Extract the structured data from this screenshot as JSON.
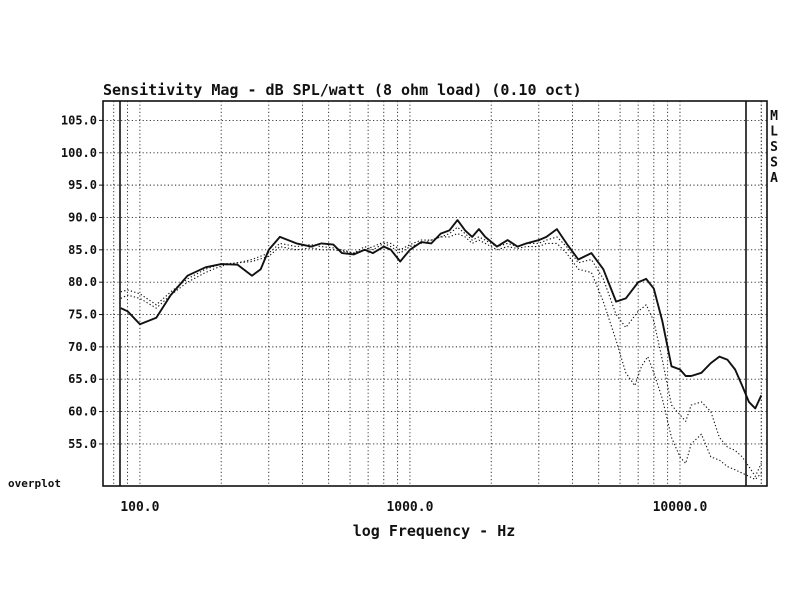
{
  "chart_data": {
    "type": "line",
    "title": "Sensitivity Mag - dB SPL/watt (8 ohm load) (0.10 oct)",
    "xlabel": "log Frequency - Hz",
    "ylabel": "",
    "x_scale": "log",
    "xlim": [
      73,
      21000
    ],
    "ylim": [
      48.5,
      108
    ],
    "grid": true,
    "x_tick_labels": [
      "100.0",
      "1000.0",
      "10000.0"
    ],
    "x_tick_values": [
      100,
      1000,
      10000
    ],
    "y_tick_labels": [
      "105.0",
      "100.0",
      "95.0",
      "90.0",
      "85.0",
      "80.0",
      "75.0",
      "70.0",
      "65.0",
      "60.0",
      "55.0"
    ],
    "y_tick_values": [
      105,
      100,
      95,
      90,
      85,
      80,
      75,
      70,
      65,
      60,
      55
    ],
    "bottom_label": "overplot",
    "side_label": [
      "M",
      "L",
      "S",
      "S",
      "A"
    ],
    "series": [
      {
        "style": "solid",
        "points": [
          [
            85,
            76
          ],
          [
            90,
            75.5
          ],
          [
            100,
            73.5
          ],
          [
            115,
            74.5
          ],
          [
            130,
            78
          ],
          [
            150,
            81
          ],
          [
            175,
            82.3
          ],
          [
            200,
            82.8
          ],
          [
            230,
            82.7
          ],
          [
            260,
            81
          ],
          [
            280,
            82
          ],
          [
            300,
            85
          ],
          [
            330,
            87
          ],
          [
            380,
            86
          ],
          [
            430,
            85.5
          ],
          [
            470,
            86
          ],
          [
            520,
            85.8
          ],
          [
            560,
            84.5
          ],
          [
            620,
            84.3
          ],
          [
            680,
            85
          ],
          [
            730,
            84.5
          ],
          [
            800,
            85.5
          ],
          [
            850,
            85
          ],
          [
            920,
            83.2
          ],
          [
            1000,
            85
          ],
          [
            1100,
            86.2
          ],
          [
            1200,
            86
          ],
          [
            1300,
            87.5
          ],
          [
            1400,
            88
          ],
          [
            1500,
            89.6
          ],
          [
            1600,
            88
          ],
          [
            1700,
            87
          ],
          [
            1800,
            88.2
          ],
          [
            1900,
            87
          ],
          [
            2100,
            85.5
          ],
          [
            2300,
            86.5
          ],
          [
            2500,
            85.5
          ],
          [
            2700,
            86
          ],
          [
            3000,
            86.5
          ],
          [
            3200,
            87
          ],
          [
            3500,
            88.2
          ],
          [
            3800,
            86
          ],
          [
            4200,
            83.5
          ],
          [
            4700,
            84.5
          ],
          [
            5200,
            82
          ],
          [
            5800,
            77
          ],
          [
            6300,
            77.5
          ],
          [
            7000,
            80
          ],
          [
            7500,
            80.5
          ],
          [
            8000,
            79
          ],
          [
            8600,
            74
          ],
          [
            9300,
            67
          ],
          [
            10000,
            66.5
          ],
          [
            10500,
            65.5
          ],
          [
            11000,
            65.5
          ],
          [
            12000,
            66
          ],
          [
            13000,
            67.5
          ],
          [
            14000,
            68.5
          ],
          [
            15000,
            68
          ],
          [
            16000,
            66.5
          ],
          [
            17000,
            64
          ],
          [
            18000,
            61.5
          ],
          [
            19000,
            60.5
          ],
          [
            20000,
            62.5
          ]
        ]
      },
      {
        "style": "dotted",
        "points": [
          [
            85,
            78.5
          ],
          [
            90,
            78.8
          ],
          [
            100,
            78.2
          ],
          [
            115,
            76.5
          ],
          [
            130,
            78.5
          ],
          [
            150,
            80.5
          ],
          [
            175,
            82
          ],
          [
            200,
            82.8
          ],
          [
            230,
            83
          ],
          [
            260,
            83.5
          ],
          [
            300,
            84.5
          ],
          [
            330,
            86
          ],
          [
            380,
            85.5
          ],
          [
            430,
            85.8
          ],
          [
            470,
            85.5
          ],
          [
            520,
            85.3
          ],
          [
            560,
            85
          ],
          [
            620,
            84.5
          ],
          [
            680,
            85.5
          ],
          [
            730,
            85
          ],
          [
            800,
            86
          ],
          [
            850,
            85.5
          ],
          [
            920,
            84.5
          ],
          [
            1000,
            85.5
          ],
          [
            1100,
            86
          ],
          [
            1200,
            86.5
          ],
          [
            1300,
            87
          ],
          [
            1400,
            87.5
          ],
          [
            1500,
            88.5
          ],
          [
            1600,
            87.5
          ],
          [
            1700,
            86.5
          ],
          [
            1800,
            87
          ],
          [
            1900,
            86.5
          ],
          [
            2100,
            85.5
          ],
          [
            2300,
            86
          ],
          [
            2500,
            85.5
          ],
          [
            2700,
            86
          ],
          [
            3000,
            86
          ],
          [
            3200,
            86.5
          ],
          [
            3500,
            87
          ],
          [
            3800,
            85.5
          ],
          [
            4200,
            83
          ],
          [
            4700,
            83.5
          ],
          [
            5200,
            80.5
          ],
          [
            5800,
            75
          ],
          [
            6300,
            73
          ],
          [
            7000,
            75.5
          ],
          [
            7500,
            76.5
          ],
          [
            8000,
            74
          ],
          [
            8600,
            68
          ],
          [
            9300,
            61
          ],
          [
            10000,
            59.5
          ],
          [
            10500,
            58.5
          ],
          [
            11000,
            61
          ],
          [
            12000,
            61.5
          ],
          [
            13000,
            60
          ],
          [
            14000,
            56
          ],
          [
            15000,
            54.5
          ],
          [
            16000,
            54
          ],
          [
            17000,
            53
          ],
          [
            18000,
            51.5
          ],
          [
            19000,
            50
          ],
          [
            20000,
            52
          ]
        ]
      },
      {
        "style": "dotted",
        "points": [
          [
            85,
            77.5
          ],
          [
            90,
            78
          ],
          [
            100,
            77.5
          ],
          [
            115,
            76
          ],
          [
            130,
            78
          ],
          [
            150,
            80
          ],
          [
            175,
            81.5
          ],
          [
            200,
            82.5
          ],
          [
            230,
            83
          ],
          [
            260,
            83.2
          ],
          [
            300,
            84
          ],
          [
            330,
            85.5
          ],
          [
            380,
            85
          ],
          [
            430,
            85.3
          ],
          [
            470,
            85
          ],
          [
            520,
            85
          ],
          [
            560,
            84.8
          ],
          [
            620,
            84.5
          ],
          [
            680,
            85
          ],
          [
            730,
            85.5
          ],
          [
            800,
            86.2
          ],
          [
            850,
            86
          ],
          [
            920,
            85
          ],
          [
            1000,
            85.8
          ],
          [
            1100,
            86.5
          ],
          [
            1200,
            86.5
          ],
          [
            1300,
            87
          ],
          [
            1400,
            87
          ],
          [
            1500,
            87.5
          ],
          [
            1600,
            87
          ],
          [
            1700,
            86
          ],
          [
            1800,
            86.5
          ],
          [
            1900,
            86
          ],
          [
            2100,
            85
          ],
          [
            2300,
            85.5
          ],
          [
            2500,
            85.2
          ],
          [
            2700,
            85.5
          ],
          [
            3000,
            85.5
          ],
          [
            3200,
            86
          ],
          [
            3500,
            86
          ],
          [
            3800,
            84.5
          ],
          [
            4200,
            82
          ],
          [
            4700,
            81.5
          ],
          [
            5200,
            77
          ],
          [
            5800,
            71
          ],
          [
            6300,
            66
          ],
          [
            6800,
            64
          ],
          [
            7200,
            67
          ],
          [
            7600,
            68.5
          ],
          [
            8000,
            66
          ],
          [
            8600,
            62
          ],
          [
            9300,
            56
          ],
          [
            10000,
            53
          ],
          [
            10500,
            52
          ],
          [
            11000,
            55
          ],
          [
            12000,
            56.5
          ],
          [
            13000,
            53
          ],
          [
            14000,
            52.5
          ],
          [
            15000,
            51.5
          ],
          [
            16000,
            51
          ],
          [
            17000,
            50.5
          ],
          [
            18000,
            50
          ],
          [
            19000,
            49.5
          ],
          [
            20000,
            50.5
          ]
        ]
      }
    ]
  }
}
